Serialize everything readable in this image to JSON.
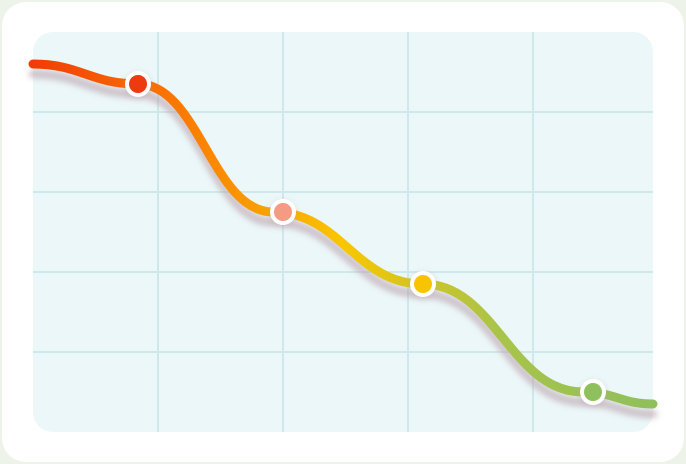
{
  "chart_data": {
    "type": "line",
    "title": "",
    "xlabel": "",
    "ylabel": "",
    "grid": true,
    "x": [
      0,
      1.05,
      2.4,
      3.9,
      5.5,
      6.2
    ],
    "y": [
      4.6,
      4.35,
      2.75,
      1.85,
      0.5,
      0.35
    ],
    "xlim": [
      0,
      6.2
    ],
    "ylim": [
      0,
      5
    ],
    "x_gridlines": [
      1.25,
      2.5,
      3.75,
      5
    ],
    "y_gridlines": [
      1,
      2,
      3,
      4
    ],
    "markers": [
      {
        "x": 1.05,
        "y": 4.35,
        "color": "#ee3a0f"
      },
      {
        "x": 2.5,
        "y": 2.75,
        "color": "#f59b83"
      },
      {
        "x": 3.9,
        "y": 1.85,
        "color": "#f8c400"
      },
      {
        "x": 5.6,
        "y": 0.5,
        "color": "#8fc05e"
      }
    ],
    "gradient_colors": [
      "#f23c05",
      "#fb7d00",
      "#f9c600",
      "#a9c44a",
      "#8fbf5c"
    ],
    "colors": {
      "card_background": "#ffffff",
      "plot_background": "#ebf7f8",
      "grid": "#cfe8eb",
      "shadow": "#b79aa6",
      "marker_outline": "#ffffff"
    }
  }
}
